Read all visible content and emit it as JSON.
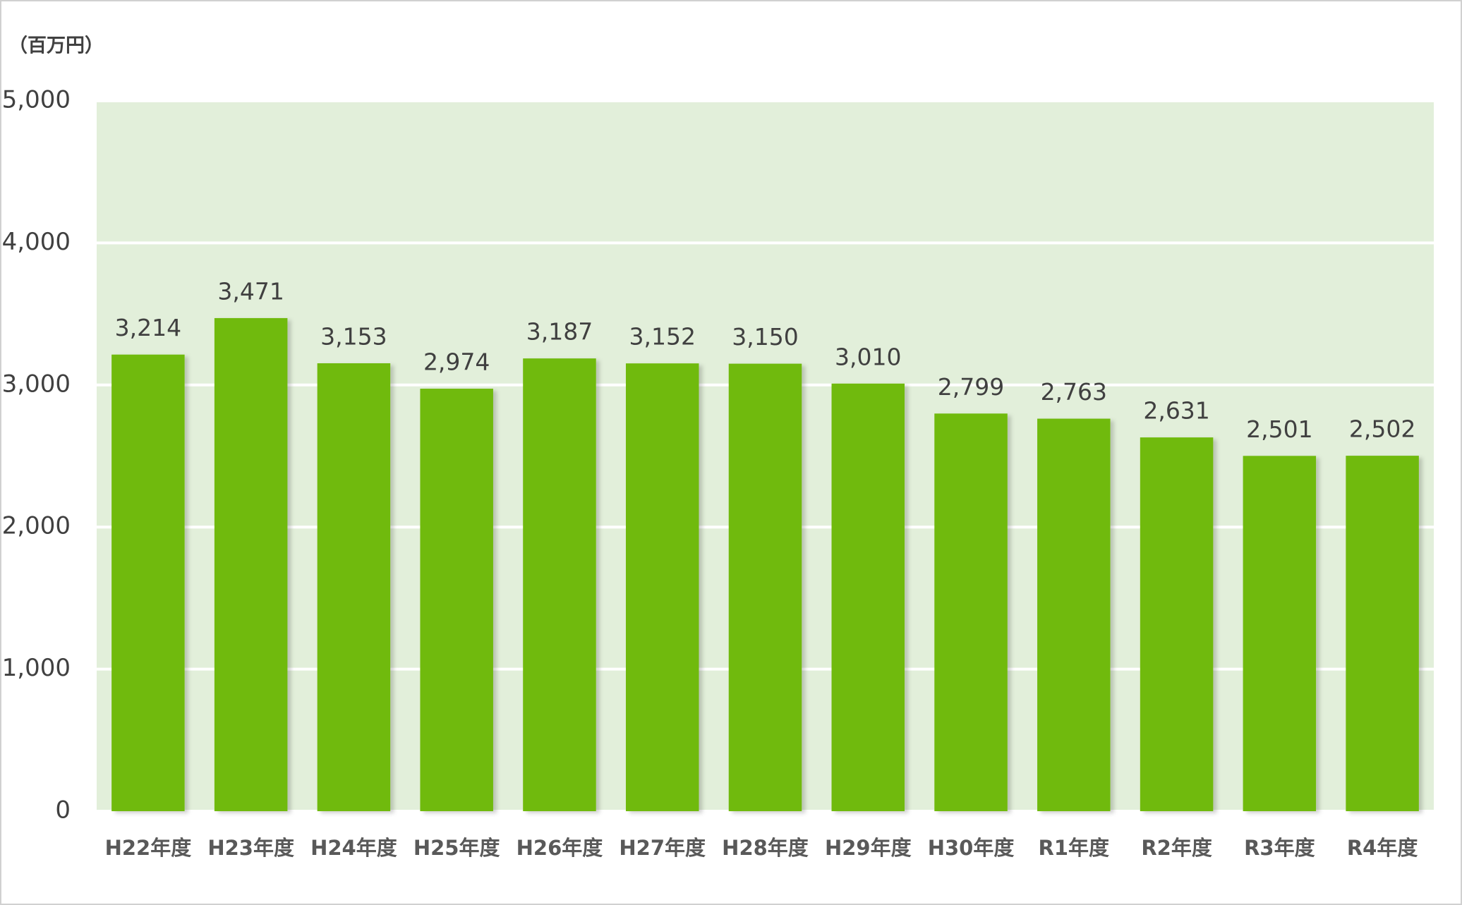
{
  "chart_data": {
    "type": "bar",
    "y_label": "（百万円）",
    "categories": [
      "H22年度",
      "H23年度",
      "H24年度",
      "H25年度",
      "H26年度",
      "H27年度",
      "H28年度",
      "H29年度",
      "H30年度",
      "R1年度",
      "R2年度",
      "R3年度",
      "R4年度"
    ],
    "values": [
      3214,
      3471,
      3153,
      2974,
      3187,
      3152,
      3150,
      3010,
      2799,
      2763,
      2631,
      2501,
      2502
    ],
    "value_labels": [
      "3,214",
      "3,471",
      "3,153",
      "2,974",
      "3,187",
      "3,152",
      "3,150",
      "3,010",
      "2,799",
      "2,763",
      "2,631",
      "2,501",
      "2,502"
    ],
    "color": "#6fba0a",
    "ylim": [
      0,
      5000
    ],
    "yticks": [
      0,
      {
        "value": 1000,
        "label": "1,000"
      },
      {
        "value": 2000,
        "label": "2,000"
      },
      {
        "value": 3000,
        "label": "3,000"
      },
      {
        "value": 4000,
        "label": "4,000"
      },
      {
        "value": 5000,
        "label": "5,000"
      }
    ],
    "grid": true
  }
}
